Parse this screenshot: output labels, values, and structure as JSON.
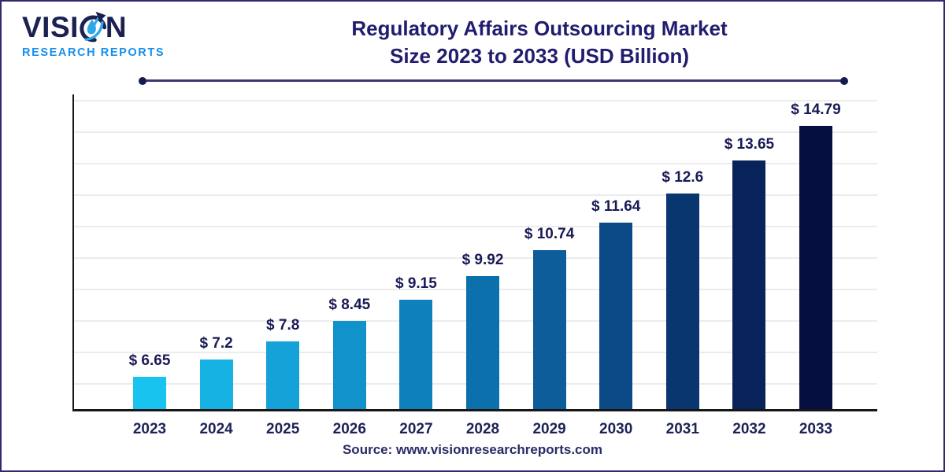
{
  "page": {
    "background": "#ffffff",
    "border_color": "#2E2A70"
  },
  "logo": {
    "word_prefix": "VISI",
    "word_suffix": "N",
    "subtitle": "RESEARCH REPORTS",
    "word_color": "#1B2150",
    "subtitle_color": "#1690EB",
    "glyph_blue": "#2EA8E8"
  },
  "header": {
    "title_line1": "Regulatory Affairs Outsourcing Market",
    "title_line2": "Size 2023 to 2033 (USD Billion)",
    "title_color": "#211D6E"
  },
  "chart_data": {
    "type": "bar",
    "title": "Regulatory Affairs Outsourcing Market Size 2023 to 2033 (USD Billion)",
    "categories": [
      "2023",
      "2024",
      "2025",
      "2026",
      "2027",
      "2028",
      "2029",
      "2030",
      "2031",
      "2032",
      "2033"
    ],
    "values": [
      6.65,
      7.2,
      7.8,
      8.45,
      9.15,
      9.92,
      10.74,
      11.64,
      12.6,
      13.65,
      14.79
    ],
    "value_labels": [
      "$ 6.65",
      "$ 7.2",
      "$ 7.8",
      "$ 8.45",
      "$ 9.15",
      "$ 9.92",
      "$ 10.74",
      "$ 11.64",
      "$ 12.6",
      "$ 13.65",
      "$ 14.79"
    ],
    "bar_colors": [
      "#18C3EF",
      "#16B2E4",
      "#14A2D8",
      "#1192CB",
      "#0E81BD",
      "#0C70AC",
      "#0D5D9B",
      "#0C4A87",
      "#0A3670",
      "#08235A",
      "#051040"
    ],
    "unit": "USD Billion",
    "xlabel": "",
    "ylabel": "",
    "ylim": [
      5.6,
      15.8
    ],
    "grid": true,
    "gridline_color": "#ECECEC",
    "legend": false,
    "axis_color": "#161616"
  },
  "footer": {
    "source_text": "Source: www.visionresearchreports.com"
  }
}
